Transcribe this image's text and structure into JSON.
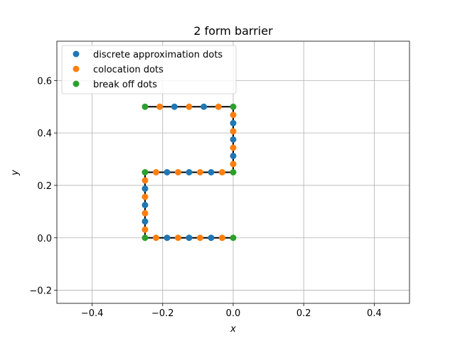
{
  "chart_data": {
    "type": "scatter",
    "title": "2 form barrier",
    "xlabel": "x",
    "ylabel": "y",
    "xlim": [
      -0.5,
      0.5
    ],
    "ylim": [
      -0.25,
      0.75
    ],
    "xticks": [
      -0.4,
      -0.2,
      0.0,
      0.2,
      0.4
    ],
    "xtick_labels": [
      "−0.4",
      "−0.2",
      "0.0",
      "0.2",
      "0.4"
    ],
    "yticks": [
      -0.2,
      0.0,
      0.2,
      0.4,
      0.6
    ],
    "ytick_labels": [
      "−0.2",
      "0.0",
      "0.2",
      "0.4",
      "0.6"
    ],
    "grid": true,
    "legend_position": "upper-left",
    "barrier_path": {
      "color": "#000000",
      "x": [
        0.0,
        -0.25,
        -0.25,
        0.0,
        0.0,
        -0.25
      ],
      "y": [
        0.0,
        0.0,
        0.25,
        0.25,
        0.5,
        0.5
      ]
    },
    "series": [
      {
        "name": "discrete approximation dots",
        "color": "#1f77b4",
        "x": [
          -0.1875,
          -0.125,
          -0.0625,
          -0.25,
          -0.25,
          -0.25,
          -0.1875,
          -0.125,
          -0.0625,
          0.0,
          0.0,
          0.0,
          -0.0833,
          -0.1667
        ],
        "y": [
          0.0,
          0.0,
          0.0,
          0.0625,
          0.125,
          0.1875,
          0.25,
          0.25,
          0.25,
          0.3125,
          0.375,
          0.4375,
          0.5,
          0.5
        ]
      },
      {
        "name": "colocation dots",
        "color": "#ff7f0e",
        "x": [
          -0.0313,
          -0.0938,
          -0.1563,
          -0.2188,
          -0.25,
          -0.25,
          -0.25,
          -0.25,
          -0.2188,
          -0.1563,
          -0.0938,
          -0.0313,
          0.0,
          0.0,
          0.0,
          0.0,
          -0.0417,
          -0.125,
          -0.2083
        ],
        "y": [
          0.0,
          0.0,
          0.0,
          0.0,
          0.0313,
          0.0938,
          0.1563,
          0.2188,
          0.25,
          0.25,
          0.25,
          0.25,
          0.2813,
          0.3438,
          0.4063,
          0.4688,
          0.5,
          0.5,
          0.5
        ]
      },
      {
        "name": "break off dots",
        "color": "#2ca02c",
        "x": [
          0.0,
          -0.25,
          -0.25,
          0.0,
          0.0,
          -0.25
        ],
        "y": [
          0.0,
          0.0,
          0.25,
          0.25,
          0.5,
          0.5
        ]
      }
    ]
  }
}
